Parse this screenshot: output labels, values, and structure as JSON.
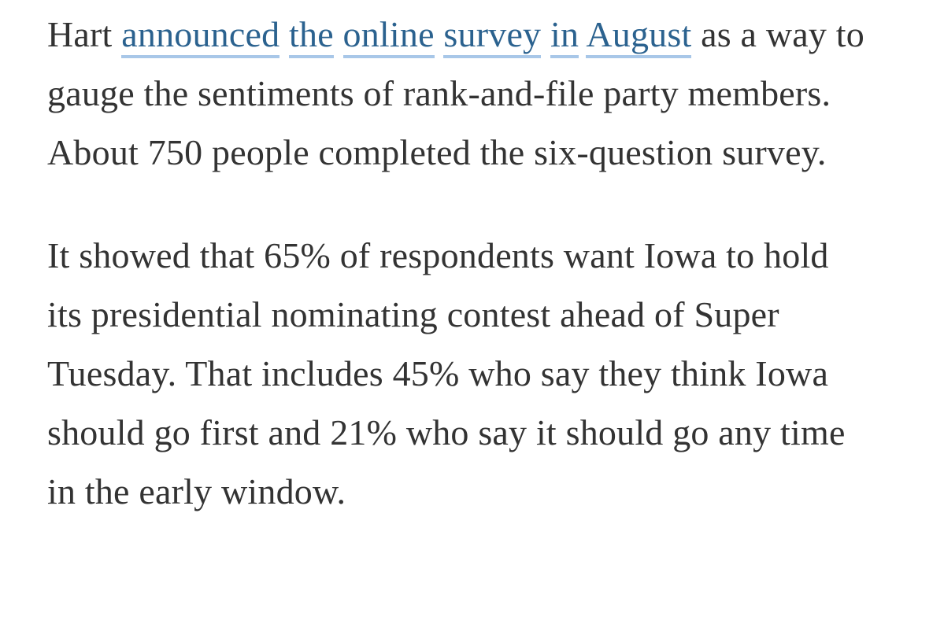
{
  "article": {
    "paragraphs": [
      {
        "before_link": "Hart ",
        "link": "announced the online survey in August",
        "after_link": " as a way to gauge the sentiments of rank-and-file party members. About 750 people completed the six-question survey."
      },
      {
        "text": "It showed that 65% of respondents want Iowa to hold its presidential nominating contest ahead of Super Tuesday. That includes 45% who say they think Iowa should go first and 21% who say it should go any time in the early window."
      }
    ],
    "stats": {
      "survey_respondents": "750",
      "want_iowa_before_super_tuesday_pct": "65%",
      "iowa_first_pct": "45%",
      "early_window_pct": "21%"
    },
    "colors": {
      "text": "#333333",
      "link": "#2b628f",
      "link_underline": "#a8c7e8",
      "background": "#ffffff"
    }
  }
}
